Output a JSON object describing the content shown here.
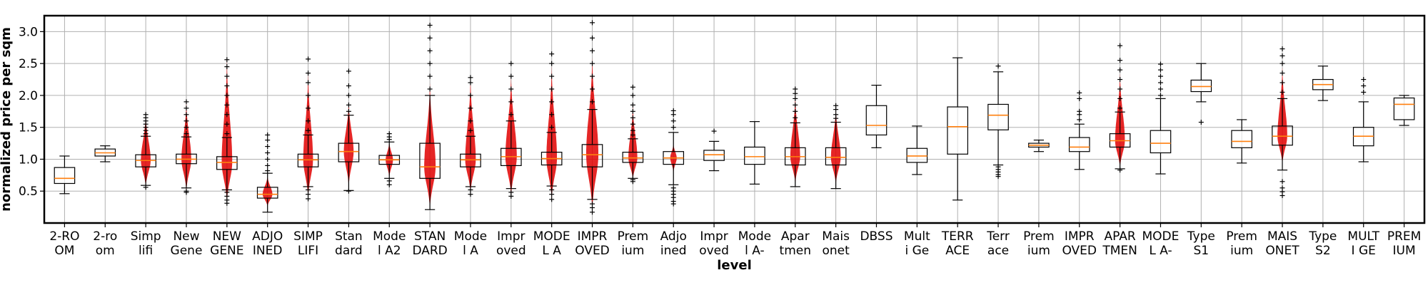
{
  "chart_data": {
    "type": "boxplot",
    "xlabel": "level",
    "ylabel": "normalized price per sqm",
    "ylim": [
      0.0,
      3.25
    ],
    "yticks": [
      0.5,
      1.0,
      1.5,
      2.0,
      2.5,
      3.0
    ],
    "ytick_labels": [
      "0.5",
      "1.0",
      "1.5",
      "2.0",
      "2.5",
      "3.0"
    ],
    "grid": true,
    "colors": {
      "median": "#ff7f0e",
      "violin": "#e00000",
      "box": "#000000",
      "grid": "#b0b0b0"
    },
    "categories": [
      [
        "2-RO",
        "OM"
      ],
      [
        "2-ro",
        "om"
      ],
      [
        "Simp",
        "lifi"
      ],
      [
        "New",
        "Gene"
      ],
      [
        "NEW",
        "GENE"
      ],
      [
        "ADJO",
        "INED"
      ],
      [
        "SIMP",
        "LIFI"
      ],
      [
        "Stan",
        "dard"
      ],
      [
        "Mode",
        "l A2"
      ],
      [
        "STAN",
        "DARD"
      ],
      [
        "Mode",
        "l A"
      ],
      [
        "Impr",
        "oved"
      ],
      [
        "MODE",
        "L A"
      ],
      [
        "IMPR",
        "OVED"
      ],
      [
        "Prem",
        "ium"
      ],
      [
        "Adjo",
        "ined"
      ],
      [
        "Impr",
        "oved"
      ],
      [
        "Mode",
        "l A-"
      ],
      [
        "Apar",
        "tmen"
      ],
      [
        "Mais",
        "onet"
      ],
      [
        "DBSS",
        ""
      ],
      [
        "Mult",
        "i Ge"
      ],
      [
        "TERR",
        "ACE"
      ],
      [
        "Terr",
        "ace"
      ],
      [
        "Prem",
        "ium"
      ],
      [
        "IMPR",
        "OVED"
      ],
      [
        "APAR",
        "TMEN"
      ],
      [
        "MODE",
        "L A-"
      ],
      [
        "Type",
        "S1"
      ],
      [
        "Prem",
        "ium"
      ],
      [
        "MAIS",
        "ONET"
      ],
      [
        "Type",
        "S2"
      ],
      [
        "MULT",
        "I GE"
      ],
      [
        "PREM",
        "IUM"
      ]
    ],
    "boxes": [
      {
        "q1": 0.62,
        "median": 0.7,
        "q3": 0.87,
        "whislo": 0.46,
        "whishi": 1.05,
        "fliers": [],
        "violin": null
      },
      {
        "q1": 1.05,
        "median": 1.1,
        "q3": 1.16,
        "whislo": 0.96,
        "whishi": 1.21,
        "fliers": [],
        "violin": null
      },
      {
        "q1": 0.88,
        "median": 0.98,
        "q3": 1.07,
        "whislo": 0.59,
        "whishi": 1.36,
        "fliers": [
          1.4,
          1.45,
          1.5,
          1.55,
          1.6,
          1.65,
          1.7,
          0.56
        ],
        "violin": [
          0.55,
          1.72,
          0.12
        ]
      },
      {
        "q1": 0.93,
        "median": 1.0,
        "q3": 1.08,
        "whislo": 0.55,
        "whishi": 1.35,
        "fliers": [
          1.4,
          1.5,
          1.6,
          1.7,
          1.8,
          1.9,
          0.5,
          0.48
        ],
        "violin": [
          0.48,
          1.9,
          0.12
        ]
      },
      {
        "q1": 0.84,
        "median": 0.95,
        "q3": 1.04,
        "whislo": 0.52,
        "whishi": 1.34,
        "fliers": [
          1.4,
          1.55,
          1.7,
          1.85,
          2.0,
          2.15,
          2.3,
          2.45,
          2.56,
          0.48,
          0.42,
          0.36,
          0.31
        ],
        "violin": [
          0.3,
          2.56,
          0.13
        ]
      },
      {
        "q1": 0.39,
        "median": 0.45,
        "q3": 0.56,
        "whislo": 0.17,
        "whishi": 0.78,
        "fliers": [
          0.82,
          0.9,
          1.0,
          1.1,
          1.2,
          1.3,
          1.38
        ],
        "violin": [
          0.25,
          0.75,
          0.12
        ]
      },
      {
        "q1": 0.88,
        "median": 0.99,
        "q3": 1.08,
        "whislo": 0.57,
        "whishi": 1.38,
        "fliers": [
          1.45,
          1.6,
          1.8,
          2.0,
          2.2,
          2.35,
          2.57,
          0.52,
          0.45,
          0.38
        ],
        "violin": [
          0.37,
          2.35,
          0.12
        ]
      },
      {
        "q1": 0.96,
        "median": 1.12,
        "q3": 1.25,
        "whislo": 0.51,
        "whishi": 1.69,
        "fliers": [
          1.75,
          1.85,
          2.0,
          2.15,
          2.38,
          0.5
        ],
        "violin": [
          0.55,
          1.9,
          0.12
        ]
      },
      {
        "q1": 0.92,
        "median": 0.99,
        "q3": 1.06,
        "whislo": 0.7,
        "whishi": 1.27,
        "fliers": [
          1.31,
          1.35,
          1.4,
          0.66,
          0.6
        ],
        "violin": [
          0.7,
          1.28,
          0.09
        ]
      },
      {
        "q1": 0.7,
        "median": 0.88,
        "q3": 1.25,
        "whislo": 0.21,
        "whishi": 2.0,
        "fliers": [
          2.1,
          2.3,
          2.5,
          2.7,
          2.9,
          3.1
        ],
        "violin": [
          0.2,
          2.2,
          0.14
        ]
      },
      {
        "q1": 0.88,
        "median": 0.99,
        "q3": 1.08,
        "whislo": 0.57,
        "whishi": 1.36,
        "fliers": [
          1.45,
          1.6,
          1.8,
          2.0,
          2.2,
          2.28,
          0.52,
          0.45
        ],
        "violin": [
          0.45,
          2.25,
          0.13
        ]
      },
      {
        "q1": 0.9,
        "median": 1.04,
        "q3": 1.17,
        "whislo": 0.54,
        "whishi": 1.6,
        "fliers": [
          1.7,
          1.9,
          2.1,
          2.3,
          2.5,
          0.48,
          0.42
        ],
        "violin": [
          0.4,
          2.3,
          0.14
        ]
      },
      {
        "q1": 0.91,
        "median": 1.01,
        "q3": 1.11,
        "whislo": 0.58,
        "whishi": 1.42,
        "fliers": [
          1.5,
          1.7,
          1.9,
          2.1,
          2.3,
          2.5,
          2.65,
          0.52,
          0.45,
          0.37
        ],
        "violin": [
          0.35,
          2.45,
          0.13
        ]
      },
      {
        "q1": 0.88,
        "median": 1.07,
        "q3": 1.23,
        "whislo": 0.37,
        "whishi": 1.78,
        "fliers": [
          1.9,
          2.1,
          2.3,
          2.5,
          2.7,
          2.9,
          3.14,
          0.3,
          0.24,
          0.17
        ],
        "violin": [
          0.17,
          2.6,
          0.15
        ]
      },
      {
        "q1": 0.95,
        "median": 1.02,
        "q3": 1.11,
        "whislo": 0.7,
        "whishi": 1.32,
        "fliers": [
          1.38,
          1.45,
          1.55,
          1.65,
          1.75,
          1.85,
          2.0,
          2.13,
          0.68,
          0.65
        ],
        "violin": [
          0.66,
          1.85,
          0.11
        ]
      },
      {
        "q1": 0.92,
        "median": 1.02,
        "q3": 1.12,
        "whislo": 0.6,
        "whishi": 1.42,
        "fliers": [
          1.5,
          1.6,
          1.7,
          1.76,
          0.55,
          0.5,
          0.45,
          0.4,
          0.34,
          0.3
        ],
        "violin": [
          0.78,
          1.25,
          0.08
        ]
      },
      {
        "q1": 0.98,
        "median": 1.07,
        "q3": 1.14,
        "whislo": 0.82,
        "whishi": 1.28,
        "fliers": [
          1.44
        ],
        "violin": null
      },
      {
        "q1": 0.92,
        "median": 1.04,
        "q3": 1.19,
        "whislo": 0.61,
        "whishi": 1.59,
        "fliers": [],
        "violin": null
      },
      {
        "q1": 0.91,
        "median": 1.04,
        "q3": 1.18,
        "whislo": 0.57,
        "whishi": 1.57,
        "fliers": [
          1.65,
          1.75,
          1.85,
          1.95,
          2.03,
          2.1
        ],
        "violin": [
          0.6,
          2.0,
          0.12
        ]
      },
      {
        "q1": 0.91,
        "median": 1.03,
        "q3": 1.18,
        "whislo": 0.54,
        "whishi": 1.58,
        "fliers": [
          1.64,
          1.7,
          1.78,
          1.84
        ],
        "violin": [
          0.58,
          1.82,
          0.12
        ]
      },
      {
        "q1": 1.38,
        "median": 1.53,
        "q3": 1.84,
        "whislo": 1.18,
        "whishi": 2.16,
        "fliers": [],
        "violin": null
      },
      {
        "q1": 0.95,
        "median": 1.05,
        "q3": 1.17,
        "whislo": 0.76,
        "whishi": 1.52,
        "fliers": [],
        "violin": null
      },
      {
        "q1": 1.08,
        "median": 1.51,
        "q3": 1.82,
        "whislo": 0.36,
        "whishi": 2.59,
        "fliers": [],
        "violin": null
      },
      {
        "q1": 1.46,
        "median": 1.69,
        "q3": 1.86,
        "whislo": 0.91,
        "whishi": 2.37,
        "fliers": [
          2.46,
          0.88,
          0.84,
          0.8,
          0.76,
          0.73
        ],
        "violin": null
      },
      {
        "q1": 1.19,
        "median": 1.22,
        "q3": 1.25,
        "whislo": 1.12,
        "whishi": 1.3,
        "fliers": [],
        "violin": null
      },
      {
        "q1": 1.12,
        "median": 1.19,
        "q3": 1.34,
        "whislo": 0.84,
        "whishi": 1.55,
        "fliers": [
          1.62,
          1.7,
          1.75,
          1.95,
          2.04
        ],
        "violin": null
      },
      {
        "q1": 1.19,
        "median": 1.29,
        "q3": 1.4,
        "whislo": 0.85,
        "whishi": 1.74,
        "fliers": [
          1.8,
          1.95,
          2.1,
          2.25,
          2.4,
          2.55,
          2.78,
          0.83
        ],
        "violin": [
          0.84,
          2.35,
          0.12
        ]
      },
      {
        "q1": 1.1,
        "median": 1.25,
        "q3": 1.45,
        "whislo": 0.77,
        "whishi": 1.95,
        "fliers": [
          2.0,
          2.1,
          2.2,
          2.3,
          2.4,
          2.49
        ],
        "violin": null
      },
      {
        "q1": 2.06,
        "median": 2.14,
        "q3": 2.24,
        "whislo": 1.9,
        "whishi": 2.5,
        "fliers": [
          1.58
        ],
        "violin": null
      },
      {
        "q1": 1.18,
        "median": 1.28,
        "q3": 1.45,
        "whislo": 0.94,
        "whishi": 1.62,
        "fliers": [],
        "violin": null
      },
      {
        "q1": 1.22,
        "median": 1.36,
        "q3": 1.52,
        "whislo": 0.83,
        "whishi": 1.95,
        "fliers": [
          2.05,
          2.2,
          2.35,
          2.5,
          2.62,
          2.73,
          0.65,
          0.55,
          0.49,
          0.43
        ],
        "violin": [
          0.9,
          2.45,
          0.12
        ]
      },
      {
        "q1": 2.09,
        "median": 2.17,
        "q3": 2.25,
        "whislo": 1.92,
        "whishi": 2.46,
        "fliers": [],
        "violin": null
      },
      {
        "q1": 1.21,
        "median": 1.36,
        "q3": 1.5,
        "whislo": 0.96,
        "whishi": 1.9,
        "fliers": [
          2.05,
          2.15,
          2.25
        ],
        "violin": null
      },
      {
        "q1": 1.62,
        "median": 1.86,
        "q3": 1.96,
        "whislo": 1.53,
        "whishi": 2.0,
        "fliers": [],
        "violin": null
      }
    ]
  }
}
